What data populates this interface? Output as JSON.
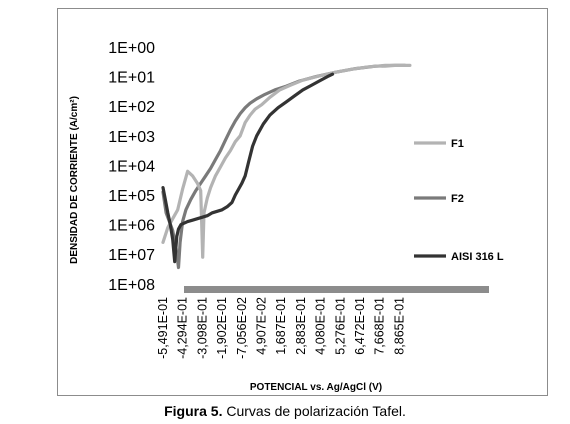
{
  "chart_data": {
    "type": "line",
    "title": "",
    "xlabel": "POTENCIAL vs. Ag/AgCl (V)",
    "ylabel": "DENSIDAD DE CORRIENTE (A/cm²)",
    "y_scale": "log (decreasing downward: 1E+00 at top, 1E+08 at bottom)",
    "y_tick_labels": [
      "1E+00",
      "1E+01",
      "1E+02",
      "1E+03",
      "1E+04",
      "1E+05",
      "1E+06",
      "1E+07",
      "1E+08"
    ],
    "x_tick_labels": [
      "-5,491E-01",
      "-4,294E-01",
      "-3,098E-01",
      "-1,902E-01",
      "-7,056E-02",
      "4,907E-02",
      "1,687E-01",
      "2,883E-01",
      "4,080E-01",
      "5,276E-01",
      "6,472E-01",
      "7,668E-01",
      "8,865E-01"
    ],
    "legend_position": "right",
    "series": [
      {
        "name": "F1",
        "color": "#b3b3b3",
        "x": [
          -0.5491,
          -0.52,
          -0.49,
          -0.46,
          -0.43,
          -0.4,
          -0.37,
          -0.34,
          -0.32,
          -0.308,
          -0.3,
          -0.28,
          -0.26,
          -0.23,
          -0.2,
          -0.17,
          -0.14,
          -0.11,
          -0.08,
          -0.05,
          -0.02,
          0.01,
          0.05,
          0.1,
          0.16,
          0.22,
          0.3,
          0.4,
          0.5,
          0.6,
          0.7,
          0.8,
          0.9,
          0.95
        ],
        "y": [
          6.6,
          6.1,
          5.8,
          5.5,
          4.8,
          4.2,
          4.35,
          4.6,
          4.85,
          7.1,
          5.6,
          5.1,
          4.75,
          4.35,
          4.05,
          3.75,
          3.5,
          3.2,
          3.0,
          2.55,
          2.3,
          2.1,
          1.95,
          1.7,
          1.45,
          1.3,
          1.12,
          0.98,
          0.85,
          0.75,
          0.67,
          0.62,
          0.62,
          0.62
        ]
      },
      {
        "name": "F2",
        "color": "#7a7a7a",
        "x": [
          -0.5491,
          -0.53,
          -0.51,
          -0.49,
          -0.47,
          -0.455,
          -0.445,
          -0.43,
          -0.41,
          -0.38,
          -0.35,
          -0.32,
          -0.29,
          -0.26,
          -0.23,
          -0.2,
          -0.17,
          -0.14,
          -0.11,
          -0.08,
          -0.05,
          -0.02,
          0.02,
          0.07,
          0.13,
          0.2,
          0.28,
          0.38,
          0.5,
          0.62,
          0.74,
          0.86,
          0.92
        ],
        "y": [
          4.9,
          5.6,
          5.9,
          6.2,
          6.8,
          7.45,
          6.6,
          5.9,
          5.5,
          5.15,
          4.85,
          4.6,
          4.35,
          4.1,
          3.8,
          3.5,
          3.15,
          2.8,
          2.5,
          2.25,
          2.05,
          1.9,
          1.75,
          1.6,
          1.45,
          1.32,
          1.15,
          1.0,
          0.85,
          0.73,
          0.65,
          0.62,
          0.62
        ]
      },
      {
        "name": "AISI 316 L",
        "color": "#333333",
        "x": [
          -0.5491,
          -0.535,
          -0.52,
          -0.505,
          -0.49,
          -0.478,
          -0.472,
          -0.465,
          -0.455,
          -0.44,
          -0.42,
          -0.4,
          -0.37,
          -0.34,
          -0.31,
          -0.28,
          -0.25,
          -0.22,
          -0.19,
          -0.16,
          -0.13,
          -0.11,
          -0.09,
          -0.07,
          -0.05,
          -0.03,
          -0.005,
          0.02,
          0.06,
          0.1,
          0.15,
          0.2,
          0.25,
          0.3,
          0.35,
          0.4,
          0.45,
          0.48
        ],
        "y": [
          4.75,
          5.15,
          5.6,
          6.0,
          6.5,
          7.25,
          6.85,
          6.4,
          6.15,
          6.0,
          5.95,
          5.9,
          5.85,
          5.8,
          5.75,
          5.7,
          5.6,
          5.55,
          5.5,
          5.4,
          5.25,
          5.0,
          4.8,
          4.6,
          4.35,
          3.9,
          3.35,
          3.0,
          2.6,
          2.3,
          2.05,
          1.85,
          1.65,
          1.45,
          1.3,
          1.15,
          1.0,
          0.92
        ]
      }
    ]
  },
  "caption": {
    "label": "Figura 5.",
    "text": " Curvas de polarización Tafel."
  }
}
